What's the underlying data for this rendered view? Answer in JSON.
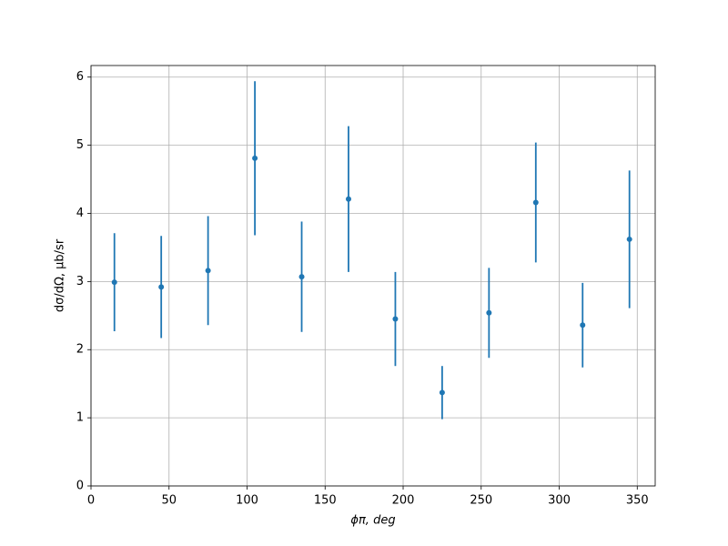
{
  "chart_data": {
    "type": "errorbar",
    "xlabel": "ϕπ, deg",
    "ylabel": "dσ/dΩ, μb/sr",
    "x": [
      15,
      45,
      75,
      105,
      135,
      165,
      195,
      225,
      255,
      285,
      315,
      345
    ],
    "series": [
      {
        "color": "#1f77b4",
        "values": [
          2.99,
          2.92,
          3.16,
          4.81,
          3.07,
          4.21,
          2.45,
          1.37,
          2.54,
          4.16,
          2.36,
          3.62
        ],
        "errors": [
          0.72,
          0.75,
          0.8,
          1.13,
          0.81,
          1.07,
          0.69,
          0.39,
          0.66,
          0.88,
          0.62,
          1.01
        ]
      }
    ],
    "xlim": [
      0,
      361.5
    ],
    "ylim": [
      0,
      6.17
    ],
    "xticks": [
      0,
      50,
      100,
      150,
      200,
      250,
      300,
      350
    ],
    "yticks": [
      0,
      1,
      2,
      3,
      4,
      5,
      6
    ],
    "grid": true
  }
}
